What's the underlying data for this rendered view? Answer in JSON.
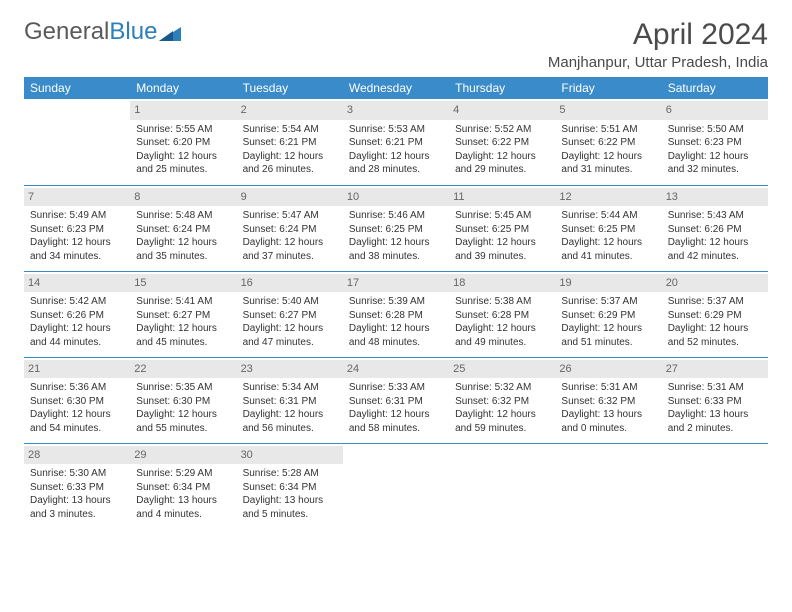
{
  "brand": {
    "part1": "General",
    "part2": "Blue",
    "text_color": "#5a5a5a",
    "accent_color": "#2c7fb8"
  },
  "title": "April 2024",
  "location": "Manjhanpur, Uttar Pradesh, India",
  "colors": {
    "header_bg": "#3a8bc9",
    "header_text": "#ffffff",
    "daynum_bg": "#e8e8e8",
    "daynum_text": "#666666",
    "cell_text": "#333333",
    "row_border": "#3a8bc9",
    "page_bg": "#ffffff"
  },
  "fontsize": {
    "title": 30,
    "subtitle": 15,
    "dayheader": 12,
    "daynum": 11,
    "cell": 10
  },
  "day_headers": [
    "Sunday",
    "Monday",
    "Tuesday",
    "Wednesday",
    "Thursday",
    "Friday",
    "Saturday"
  ],
  "weeks": [
    [
      {
        "n": "",
        "sr": "",
        "ss": "",
        "dl": ""
      },
      {
        "n": "1",
        "sr": "Sunrise: 5:55 AM",
        "ss": "Sunset: 6:20 PM",
        "dl": "Daylight: 12 hours and 25 minutes."
      },
      {
        "n": "2",
        "sr": "Sunrise: 5:54 AM",
        "ss": "Sunset: 6:21 PM",
        "dl": "Daylight: 12 hours and 26 minutes."
      },
      {
        "n": "3",
        "sr": "Sunrise: 5:53 AM",
        "ss": "Sunset: 6:21 PM",
        "dl": "Daylight: 12 hours and 28 minutes."
      },
      {
        "n": "4",
        "sr": "Sunrise: 5:52 AM",
        "ss": "Sunset: 6:22 PM",
        "dl": "Daylight: 12 hours and 29 minutes."
      },
      {
        "n": "5",
        "sr": "Sunrise: 5:51 AM",
        "ss": "Sunset: 6:22 PM",
        "dl": "Daylight: 12 hours and 31 minutes."
      },
      {
        "n": "6",
        "sr": "Sunrise: 5:50 AM",
        "ss": "Sunset: 6:23 PM",
        "dl": "Daylight: 12 hours and 32 minutes."
      }
    ],
    [
      {
        "n": "7",
        "sr": "Sunrise: 5:49 AM",
        "ss": "Sunset: 6:23 PM",
        "dl": "Daylight: 12 hours and 34 minutes."
      },
      {
        "n": "8",
        "sr": "Sunrise: 5:48 AM",
        "ss": "Sunset: 6:24 PM",
        "dl": "Daylight: 12 hours and 35 minutes."
      },
      {
        "n": "9",
        "sr": "Sunrise: 5:47 AM",
        "ss": "Sunset: 6:24 PM",
        "dl": "Daylight: 12 hours and 37 minutes."
      },
      {
        "n": "10",
        "sr": "Sunrise: 5:46 AM",
        "ss": "Sunset: 6:25 PM",
        "dl": "Daylight: 12 hours and 38 minutes."
      },
      {
        "n": "11",
        "sr": "Sunrise: 5:45 AM",
        "ss": "Sunset: 6:25 PM",
        "dl": "Daylight: 12 hours and 39 minutes."
      },
      {
        "n": "12",
        "sr": "Sunrise: 5:44 AM",
        "ss": "Sunset: 6:25 PM",
        "dl": "Daylight: 12 hours and 41 minutes."
      },
      {
        "n": "13",
        "sr": "Sunrise: 5:43 AM",
        "ss": "Sunset: 6:26 PM",
        "dl": "Daylight: 12 hours and 42 minutes."
      }
    ],
    [
      {
        "n": "14",
        "sr": "Sunrise: 5:42 AM",
        "ss": "Sunset: 6:26 PM",
        "dl": "Daylight: 12 hours and 44 minutes."
      },
      {
        "n": "15",
        "sr": "Sunrise: 5:41 AM",
        "ss": "Sunset: 6:27 PM",
        "dl": "Daylight: 12 hours and 45 minutes."
      },
      {
        "n": "16",
        "sr": "Sunrise: 5:40 AM",
        "ss": "Sunset: 6:27 PM",
        "dl": "Daylight: 12 hours and 47 minutes."
      },
      {
        "n": "17",
        "sr": "Sunrise: 5:39 AM",
        "ss": "Sunset: 6:28 PM",
        "dl": "Daylight: 12 hours and 48 minutes."
      },
      {
        "n": "18",
        "sr": "Sunrise: 5:38 AM",
        "ss": "Sunset: 6:28 PM",
        "dl": "Daylight: 12 hours and 49 minutes."
      },
      {
        "n": "19",
        "sr": "Sunrise: 5:37 AM",
        "ss": "Sunset: 6:29 PM",
        "dl": "Daylight: 12 hours and 51 minutes."
      },
      {
        "n": "20",
        "sr": "Sunrise: 5:37 AM",
        "ss": "Sunset: 6:29 PM",
        "dl": "Daylight: 12 hours and 52 minutes."
      }
    ],
    [
      {
        "n": "21",
        "sr": "Sunrise: 5:36 AM",
        "ss": "Sunset: 6:30 PM",
        "dl": "Daylight: 12 hours and 54 minutes."
      },
      {
        "n": "22",
        "sr": "Sunrise: 5:35 AM",
        "ss": "Sunset: 6:30 PM",
        "dl": "Daylight: 12 hours and 55 minutes."
      },
      {
        "n": "23",
        "sr": "Sunrise: 5:34 AM",
        "ss": "Sunset: 6:31 PM",
        "dl": "Daylight: 12 hours and 56 minutes."
      },
      {
        "n": "24",
        "sr": "Sunrise: 5:33 AM",
        "ss": "Sunset: 6:31 PM",
        "dl": "Daylight: 12 hours and 58 minutes."
      },
      {
        "n": "25",
        "sr": "Sunrise: 5:32 AM",
        "ss": "Sunset: 6:32 PM",
        "dl": "Daylight: 12 hours and 59 minutes."
      },
      {
        "n": "26",
        "sr": "Sunrise: 5:31 AM",
        "ss": "Sunset: 6:32 PM",
        "dl": "Daylight: 13 hours and 0 minutes."
      },
      {
        "n": "27",
        "sr": "Sunrise: 5:31 AM",
        "ss": "Sunset: 6:33 PM",
        "dl": "Daylight: 13 hours and 2 minutes."
      }
    ],
    [
      {
        "n": "28",
        "sr": "Sunrise: 5:30 AM",
        "ss": "Sunset: 6:33 PM",
        "dl": "Daylight: 13 hours and 3 minutes."
      },
      {
        "n": "29",
        "sr": "Sunrise: 5:29 AM",
        "ss": "Sunset: 6:34 PM",
        "dl": "Daylight: 13 hours and 4 minutes."
      },
      {
        "n": "30",
        "sr": "Sunrise: 5:28 AM",
        "ss": "Sunset: 6:34 PM",
        "dl": "Daylight: 13 hours and 5 minutes."
      },
      {
        "n": "",
        "sr": "",
        "ss": "",
        "dl": ""
      },
      {
        "n": "",
        "sr": "",
        "ss": "",
        "dl": ""
      },
      {
        "n": "",
        "sr": "",
        "ss": "",
        "dl": ""
      },
      {
        "n": "",
        "sr": "",
        "ss": "",
        "dl": ""
      }
    ]
  ]
}
